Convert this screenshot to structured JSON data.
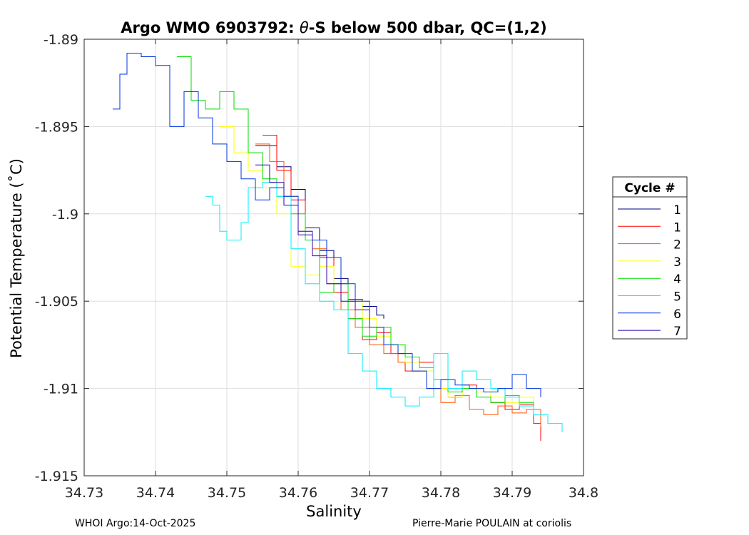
{
  "chart_data": {
    "type": "line",
    "title": "Argo WMO 6903792: θ-S below 500 dbar,  QC=(1,2)",
    "title_parts": {
      "prefix": "Argo WMO 6903792: ",
      "theta": "θ",
      "suffix": "-S below 500 dbar,  QC=(1,2)"
    },
    "xlabel": "Salinity",
    "ylabel": "Potential Temperature (˚C)",
    "xlim": [
      34.73,
      34.8
    ],
    "ylim": [
      -1.915,
      -1.89
    ],
    "xticks": [
      "34.73",
      "34.74",
      "34.75",
      "34.76",
      "34.77",
      "34.78",
      "34.79",
      "34.8"
    ],
    "yticks": [
      "-1.89",
      "-1.895",
      "-1.9",
      "-1.905",
      "-1.91",
      "-1.915"
    ],
    "grid": true,
    "legend": {
      "title": "Cycle #",
      "placement": "right-outside"
    },
    "series": [
      {
        "name": "1",
        "color": "#00007f",
        "x": [
          34.754,
          34.757,
          34.759,
          34.761,
          34.763,
          34.765,
          34.767,
          34.769,
          34.771,
          34.772
        ],
        "y": [
          -1.8961,
          -1.8973,
          -1.8986,
          -1.9008,
          -1.9021,
          -1.9037,
          -1.9049,
          -1.9053,
          -1.9058,
          -1.906
        ]
      },
      {
        "name": "1",
        "color": "#ff0000",
        "x": [
          34.755,
          34.757,
          34.759,
          34.761,
          34.763,
          34.765,
          34.767,
          34.769,
          34.771,
          34.773,
          34.775,
          34.777,
          34.779,
          34.781,
          34.783,
          34.785,
          34.787,
          34.789,
          34.791,
          34.793,
          34.794
        ],
        "y": [
          -1.8955,
          -1.8975,
          -1.8992,
          -1.9015,
          -1.9025,
          -1.9045,
          -1.906,
          -1.9072,
          -1.9068,
          -1.908,
          -1.909,
          -1.9085,
          -1.91,
          -1.9105,
          -1.9098,
          -1.9102,
          -1.9108,
          -1.9112,
          -1.9109,
          -1.912,
          -1.913
        ]
      },
      {
        "name": "2",
        "color": "#ff5500",
        "x": [
          34.754,
          34.756,
          34.758,
          34.76,
          34.762,
          34.764,
          34.766,
          34.768,
          34.77,
          34.772,
          34.774,
          34.776,
          34.778,
          34.78,
          34.782,
          34.784,
          34.786,
          34.788,
          34.79,
          34.792,
          34.794
        ],
        "y": [
          -1.896,
          -1.897,
          -1.899,
          -1.901,
          -1.902,
          -1.904,
          -1.9055,
          -1.9065,
          -1.9075,
          -1.908,
          -1.9085,
          -1.909,
          -1.91,
          -1.9108,
          -1.9104,
          -1.9112,
          -1.9115,
          -1.911,
          -1.9114,
          -1.9112,
          -1.9122
        ]
      },
      {
        "name": "3",
        "color": "#ffff00",
        "x": [
          34.749,
          34.751,
          34.753,
          34.755,
          34.757,
          34.759,
          34.761,
          34.763,
          34.765,
          34.767,
          34.769,
          34.771,
          34.773,
          34.775,
          34.777,
          34.779,
          34.781,
          34.783,
          34.785,
          34.787,
          34.789,
          34.791,
          34.793
        ],
        "y": [
          -1.895,
          -1.8965,
          -1.8975,
          -1.8985,
          -1.9,
          -1.903,
          -1.9035,
          -1.903,
          -1.904,
          -1.905,
          -1.906,
          -1.907,
          -1.9075,
          -1.9085,
          -1.909,
          -1.91,
          -1.9105,
          -1.91,
          -1.9102,
          -1.9105,
          -1.9108,
          -1.9105,
          -1.911
        ]
      },
      {
        "name": "4",
        "color": "#00dd00",
        "x": [
          34.743,
          34.745,
          34.747,
          34.749,
          34.751,
          34.753,
          34.755,
          34.757,
          34.759,
          34.761,
          34.763,
          34.765,
          34.767,
          34.769,
          34.771,
          34.773,
          34.775,
          34.777,
          34.779,
          34.781,
          34.783,
          34.785,
          34.787,
          34.789,
          34.791,
          34.793
        ],
        "y": [
          -1.891,
          -1.8935,
          -1.894,
          -1.893,
          -1.894,
          -1.8965,
          -1.898,
          -1.899,
          -1.9,
          -1.9015,
          -1.9045,
          -1.904,
          -1.906,
          -1.907,
          -1.9065,
          -1.9075,
          -1.9082,
          -1.9088,
          -1.9095,
          -1.9102,
          -1.91,
          -1.9105,
          -1.9108,
          -1.9104,
          -1.9108,
          -1.911
        ]
      },
      {
        "name": "5",
        "color": "#00eeff",
        "x": [
          34.747,
          34.748,
          34.749,
          34.75,
          34.752,
          34.753,
          34.755,
          34.757,
          34.759,
          34.761,
          34.763,
          34.765,
          34.767,
          34.769,
          34.771,
          34.773,
          34.775,
          34.777,
          34.779,
          34.781,
          34.783,
          34.785,
          34.787,
          34.789,
          34.791,
          34.793,
          34.795,
          34.797
        ],
        "y": [
          -1.899,
          -1.8995,
          -1.901,
          -1.9015,
          -1.9005,
          -1.8985,
          -1.8982,
          -1.899,
          -1.902,
          -1.904,
          -1.905,
          -1.9055,
          -1.908,
          -1.909,
          -1.91,
          -1.9105,
          -1.911,
          -1.9105,
          -1.908,
          -1.91,
          -1.909,
          -1.9095,
          -1.91,
          -1.9105,
          -1.911,
          -1.9115,
          -1.912,
          -1.9125
        ]
      },
      {
        "name": "6",
        "color": "#0033dd",
        "x": [
          34.734,
          34.735,
          34.736,
          34.738,
          34.74,
          34.742,
          34.744,
          34.746,
          34.748,
          34.75,
          34.752,
          34.754,
          34.756,
          34.758,
          34.76,
          34.762,
          34.764,
          34.766,
          34.768,
          34.77,
          34.772,
          34.774,
          34.776,
          34.778,
          34.78,
          34.782,
          34.784,
          34.786,
          34.788,
          34.79,
          34.792,
          34.794
        ],
        "y": [
          -1.894,
          -1.892,
          -1.8908,
          -1.891,
          -1.8915,
          -1.895,
          -1.893,
          -1.8945,
          -1.896,
          -1.897,
          -1.898,
          -1.8992,
          -1.8985,
          -1.899,
          -1.901,
          -1.9015,
          -1.9025,
          -1.904,
          -1.905,
          -1.9065,
          -1.9075,
          -1.908,
          -1.909,
          -1.91,
          -1.9095,
          -1.9098,
          -1.91,
          -1.9102,
          -1.91,
          -1.9092,
          -1.91,
          -1.9105
        ]
      },
      {
        "name": "7",
        "color": "#3300aa",
        "x": [
          34.754,
          34.756,
          34.758,
          34.76,
          34.762,
          34.764,
          34.766,
          34.768,
          34.77
        ],
        "y": [
          -1.8972,
          -1.8982,
          -1.8995,
          -1.9012,
          -1.9024,
          -1.904,
          -1.905,
          -1.9055,
          -1.906
        ]
      }
    ]
  },
  "footer": {
    "left": "WHOI Argo:14-Oct-2025",
    "right": "Pierre-Marie POULAIN at coriolis"
  }
}
